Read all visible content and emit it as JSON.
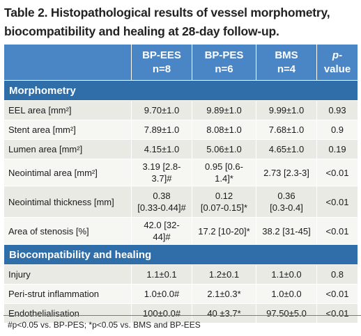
{
  "title": "Table 2. Histopathological results of vessel morphometry, biocompatibility and healing at 28-day follow-up.",
  "headers": {
    "col1": "BP-EES",
    "col1_n": "n=8",
    "col2": "BP-PES",
    "col2_n": "n=6",
    "col3": "BMS",
    "col3_n": "n=4",
    "col4_italic": "p",
    "col4_rest": "-value"
  },
  "sections": {
    "morphometry": "Morphometry",
    "biocompat": "Biocompatibility and healing"
  },
  "rows_morph": [
    {
      "label": "EEL area [mm²]",
      "v1": "9.70±1.0",
      "v2": "9.89±1.0",
      "v3": "9.99±1.0",
      "p": "0.93"
    },
    {
      "label": "Stent area [mm²]",
      "v1": "7.89±1.0",
      "v2": "8.08±1.0",
      "v3": "7.68±1.0",
      "p": "0.9"
    },
    {
      "label": "Lumen area [mm²]",
      "v1": "4.15±1.0",
      "v2": "5.06±1.0",
      "v3": "4.65±1.0",
      "p": "0.19"
    },
    {
      "label": "Neointimal area [mm²]",
      "v1": "3.19 [2.8-3.7]#",
      "v2": "0.95 [0.6-1.4]*",
      "v3": "2.73 [2.3-3]",
      "p": "<0.01"
    },
    {
      "label": "Neointimal thickness [mm]",
      "v1a": "0.38",
      "v1b": "[0.33-0.44]#",
      "v2a": "0.12",
      "v2b": "[0.07-0.15]*",
      "v3a": "0.36",
      "v3b": "[0.3-0.4]",
      "p": "<0.01"
    },
    {
      "label": "Area of stenosis [%]",
      "v1": "42.0 [32-44]#",
      "v2": "17.2 [10-20]*",
      "v3": "38.2 [31-45]",
      "p": "<0.01"
    }
  ],
  "rows_bio": [
    {
      "label": "Injury",
      "v1": "1.1±0.1",
      "v2": "1.2±0.1",
      "v3": "1.1±0.0",
      "p": "0.8"
    },
    {
      "label": "Peri-strut inflammation",
      "v1": "1.0±0.0#",
      "v2": "2.1±0.3*",
      "v3": "1.0±0.0",
      "p": "<0.01"
    },
    {
      "label": "Endothelialisation",
      "v1": "100±0.0#",
      "v2": "40 ±3.7*",
      "v3": "97.50±5.0",
      "p": "<0.01"
    }
  ],
  "footnote": "#p<0.05 vs. BP-PES; *p<0.05 vs. BMS and BP-EES"
}
